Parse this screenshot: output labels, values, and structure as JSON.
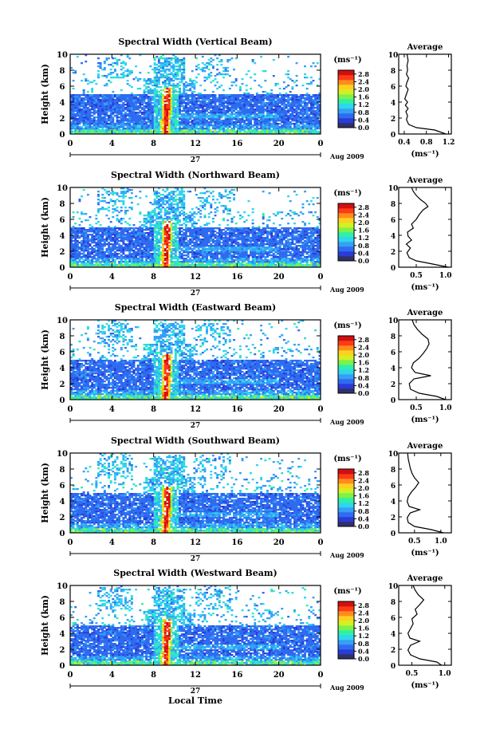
{
  "chart_data": {
    "type": "heatmap",
    "date_label": "Aug 2009",
    "day_label": "27",
    "xlabel_bottom": "Local Time",
    "ylabel": "Height (km)",
    "x_ticks": [
      "0",
      "4",
      "8",
      "12",
      "16",
      "20",
      "0"
    ],
    "y_ticks": [
      "0",
      "2",
      "4",
      "6",
      "8",
      "10"
    ],
    "xlim": [
      0,
      24
    ],
    "ylim": [
      0,
      10
    ],
    "colorbar": {
      "unit_label": "(ms⁻¹)",
      "ticks": [
        "0.0",
        "0.4",
        "0.8",
        "1.2",
        "1.6",
        "2.0",
        "2.4",
        "2.8"
      ],
      "range": [
        0,
        3.0
      ],
      "colors": [
        "#30306a",
        "#2a3bd8",
        "#2f6bf0",
        "#35a0f5",
        "#2ed6ee",
        "#2ff0a8",
        "#7ef24a",
        "#d4f023",
        "#ffd020",
        "#ff8c1a",
        "#ff3a18",
        "#d01010"
      ]
    },
    "average_title": "Average",
    "average_xlabel": "(ms⁻¹)",
    "panels": [
      {
        "title": "Spectral Width (Vertical Beam)",
        "avg_xticks": [
          "0.4",
          "0.8",
          "1.2"
        ],
        "avg_xlim": [
          0.3,
          1.25
        ],
        "avg_profile": [
          [
            0.0,
            1.15
          ],
          [
            0.5,
            0.95
          ],
          [
            0.8,
            0.62
          ],
          [
            1.2,
            0.48
          ],
          [
            1.8,
            0.44
          ],
          [
            2.3,
            0.46
          ],
          [
            2.8,
            0.43
          ],
          [
            3.2,
            0.47
          ],
          [
            3.6,
            0.42
          ],
          [
            4.0,
            0.46
          ],
          [
            4.4,
            0.41
          ],
          [
            5.0,
            0.44
          ],
          [
            5.6,
            0.47
          ],
          [
            6.0,
            0.43
          ],
          [
            6.5,
            0.45
          ],
          [
            7.0,
            0.48
          ],
          [
            7.5,
            0.44
          ],
          [
            8.0,
            0.46
          ],
          [
            8.6,
            0.45
          ],
          [
            9.2,
            0.47
          ],
          [
            10.0,
            0.45
          ]
        ]
      },
      {
        "title": "Spectral Width (Northward Beam)",
        "avg_xticks": [
          "0.5",
          "1.0"
        ],
        "avg_xlim": [
          0.2,
          1.1
        ],
        "avg_profile": [
          [
            0.0,
            1.05
          ],
          [
            0.4,
            0.78
          ],
          [
            0.8,
            0.5
          ],
          [
            1.2,
            0.38
          ],
          [
            1.8,
            0.34
          ],
          [
            2.4,
            0.4
          ],
          [
            2.9,
            0.33
          ],
          [
            3.4,
            0.42
          ],
          [
            3.9,
            0.36
          ],
          [
            4.4,
            0.35
          ],
          [
            4.9,
            0.45
          ],
          [
            5.4,
            0.42
          ],
          [
            6.0,
            0.5
          ],
          [
            6.6,
            0.55
          ],
          [
            7.2,
            0.62
          ],
          [
            7.6,
            0.7
          ],
          [
            8.0,
            0.66
          ],
          [
            8.5,
            0.57
          ],
          [
            9.0,
            0.5
          ],
          [
            9.5,
            0.45
          ],
          [
            10.0,
            0.42
          ]
        ]
      },
      {
        "title": "Spectral Width (Eastward Beam)",
        "avg_xticks": [
          "0.5",
          "1.0"
        ],
        "avg_xlim": [
          0.2,
          1.1
        ],
        "avg_profile": [
          [
            0.0,
            1.0
          ],
          [
            0.4,
            0.85
          ],
          [
            0.8,
            0.55
          ],
          [
            1.3,
            0.4
          ],
          [
            2.0,
            0.38
          ],
          [
            2.6,
            0.46
          ],
          [
            3.0,
            0.75
          ],
          [
            3.4,
            0.48
          ],
          [
            4.0,
            0.42
          ],
          [
            4.6,
            0.45
          ],
          [
            5.2,
            0.55
          ],
          [
            5.8,
            0.62
          ],
          [
            6.4,
            0.68
          ],
          [
            7.0,
            0.72
          ],
          [
            7.6,
            0.7
          ],
          [
            8.2,
            0.6
          ],
          [
            8.8,
            0.52
          ],
          [
            9.4,
            0.46
          ],
          [
            10.0,
            0.43
          ]
        ]
      },
      {
        "title": "Spectral Width (Southward Beam)",
        "avg_xticks": [
          "0.5",
          "1.0"
        ],
        "avg_xlim": [
          0.2,
          1.2
        ],
        "avg_profile": [
          [
            0.0,
            1.05
          ],
          [
            0.4,
            0.82
          ],
          [
            0.8,
            0.5
          ],
          [
            1.3,
            0.38
          ],
          [
            1.9,
            0.36
          ],
          [
            2.5,
            0.42
          ],
          [
            2.9,
            0.6
          ],
          [
            3.3,
            0.4
          ],
          [
            3.9,
            0.36
          ],
          [
            4.5,
            0.38
          ],
          [
            5.1,
            0.44
          ],
          [
            5.7,
            0.52
          ],
          [
            6.3,
            0.58
          ],
          [
            6.9,
            0.5
          ],
          [
            7.5,
            0.45
          ],
          [
            8.1,
            0.42
          ],
          [
            8.7,
            0.4
          ],
          [
            9.3,
            0.38
          ],
          [
            10.0,
            0.37
          ]
        ]
      },
      {
        "title": "Spectral Width (Westward Beam)",
        "avg_xticks": [
          "0.5",
          "1.0"
        ],
        "avg_xlim": [
          0.3,
          1.1
        ],
        "avg_profile": [
          [
            0.0,
            0.95
          ],
          [
            0.4,
            0.88
          ],
          [
            0.8,
            0.62
          ],
          [
            1.3,
            0.48
          ],
          [
            1.9,
            0.44
          ],
          [
            2.5,
            0.48
          ],
          [
            3.0,
            0.62
          ],
          [
            3.4,
            0.47
          ],
          [
            4.0,
            0.44
          ],
          [
            4.6,
            0.48
          ],
          [
            5.2,
            0.52
          ],
          [
            5.8,
            0.5
          ],
          [
            6.4,
            0.58
          ],
          [
            7.0,
            0.55
          ],
          [
            7.6,
            0.62
          ],
          [
            8.2,
            0.68
          ],
          [
            8.8,
            0.6
          ],
          [
            9.4,
            0.55
          ],
          [
            10.0,
            0.52
          ]
        ]
      }
    ]
  }
}
